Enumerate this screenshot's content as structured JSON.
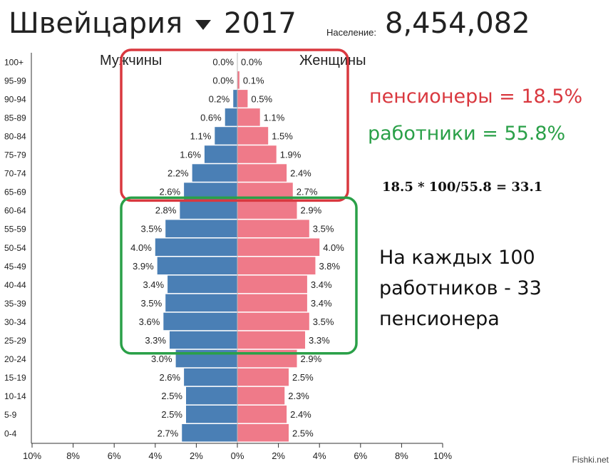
{
  "header": {
    "country": "Швейцария",
    "year": "2017",
    "population_label": "Население:",
    "population_value": "8,454,082"
  },
  "chart_data": {
    "type": "bar",
    "orientation": "horizontal",
    "title": "",
    "categories": [
      "100+",
      "95-99",
      "90-94",
      "85-89",
      "80-84",
      "75-79",
      "70-74",
      "65-69",
      "60-64",
      "55-59",
      "50-54",
      "45-49",
      "40-44",
      "35-39",
      "30-34",
      "25-29",
      "20-24",
      "15-19",
      "10-14",
      "5-9",
      "0-4"
    ],
    "series": [
      {
        "name": "Мужчины",
        "color": "#4a7fb5",
        "side": "left",
        "values": [
          0.0,
          0.0,
          0.2,
          0.6,
          1.1,
          1.6,
          2.2,
          2.6,
          2.8,
          3.5,
          4.0,
          3.9,
          3.4,
          3.5,
          3.6,
          3.3,
          3.0,
          2.6,
          2.5,
          2.5,
          2.7
        ]
      },
      {
        "name": "Женщины",
        "color": "#ef7a89",
        "side": "right",
        "values": [
          0.0,
          0.1,
          0.5,
          1.1,
          1.5,
          1.9,
          2.4,
          2.7,
          2.9,
          3.5,
          4.0,
          3.8,
          3.4,
          3.4,
          3.5,
          3.3,
          2.9,
          2.5,
          2.3,
          2.4,
          2.5
        ]
      }
    ],
    "xlim": [
      -10,
      10
    ],
    "xticks": [
      "10%",
      "8%",
      "6%",
      "4%",
      "2%",
      "0%",
      "2%",
      "4%",
      "6%",
      "8%",
      "10%"
    ],
    "grid": false
  },
  "annotations": {
    "pensioners": "пенсионеры = 18.5%",
    "workers": "работники = 55.8%",
    "formula": "18.5 * 100/55.8 = 33.1",
    "note": "На каждых 100 работников - 33 пенсионера"
  },
  "watermark": "Fishki.net",
  "colors": {
    "male": "#4a7fb5",
    "female": "#ef7a89",
    "red_box": "#d9383f",
    "green_box": "#2aa048"
  }
}
